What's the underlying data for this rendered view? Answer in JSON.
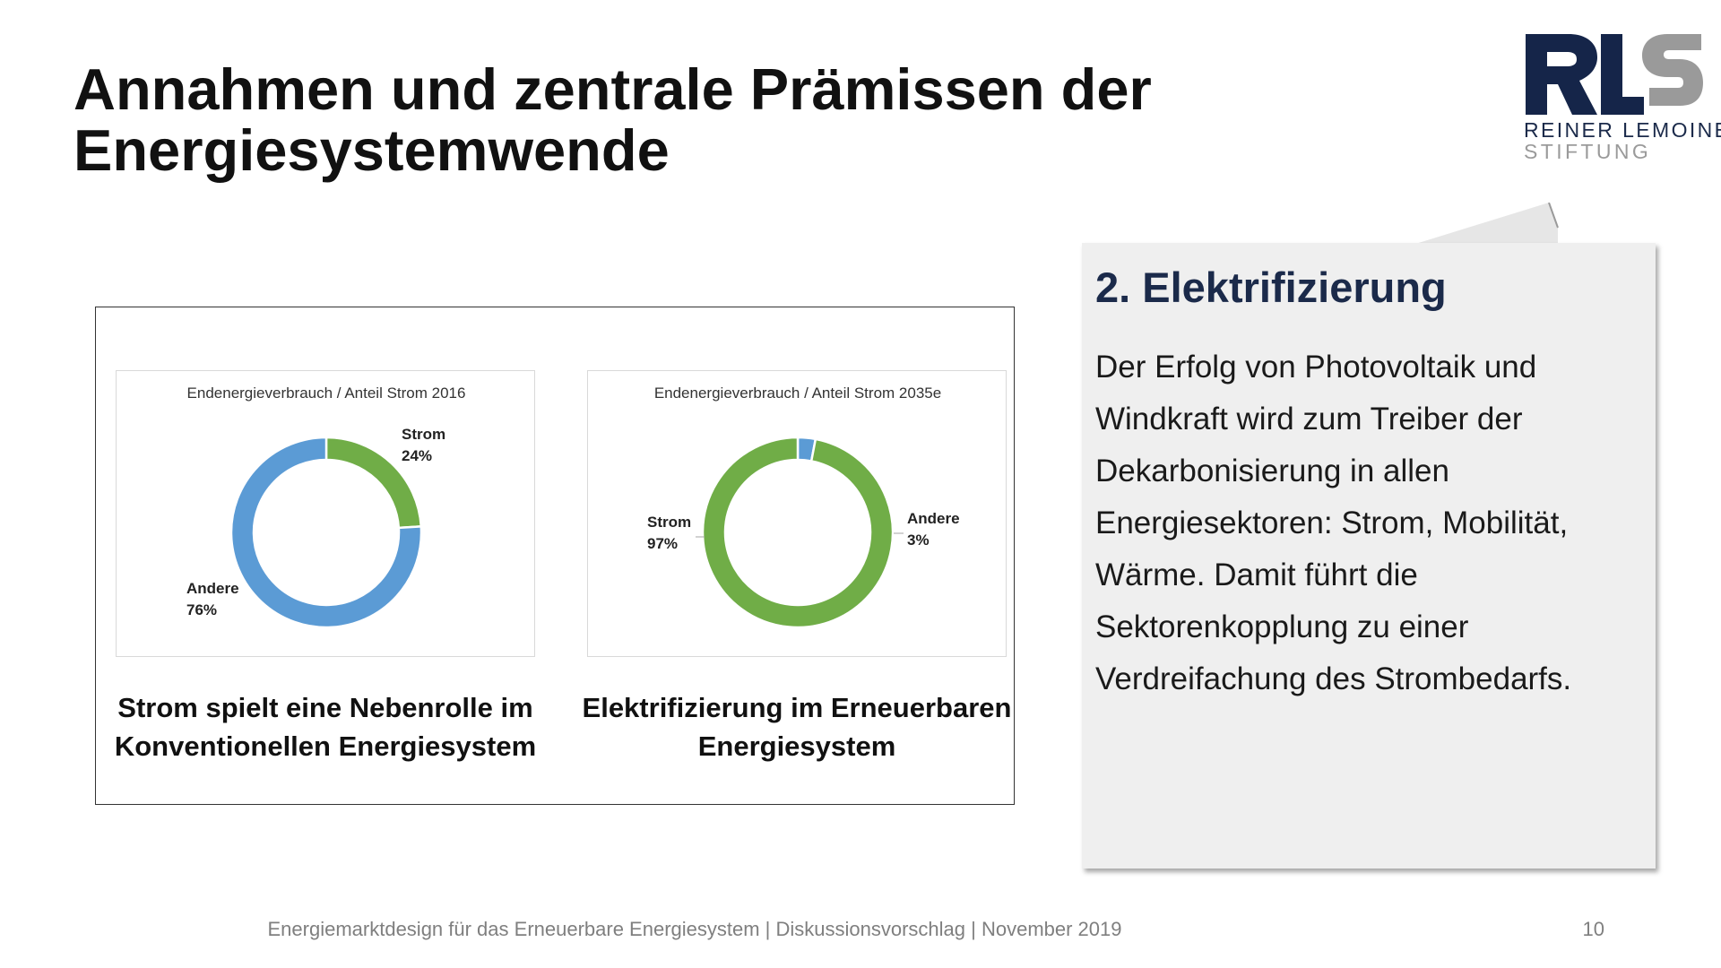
{
  "slide": {
    "title": "Annahmen und zentrale Prämissen der Energiesystemwende"
  },
  "logo": {
    "line1": "REINER LEMOINE",
    "line2": "STIFTUNG",
    "primary_color": "#152549",
    "secondary_color": "#9a9a9a"
  },
  "captions": {
    "left": "Strom spielt eine Nebenrolle im Konventionellen Energiesystem",
    "right": "Elektrifizierung im Erneuerbaren Energiesystem"
  },
  "chart_data": [
    {
      "type": "pie",
      "donut": true,
      "title": "Endenergieverbrauch  / Anteil Strom 2016",
      "labels": [
        "Strom",
        "Andere"
      ],
      "values": [
        24,
        76
      ],
      "value_labels": [
        "24%",
        "76%"
      ],
      "colors": [
        "#70ad47",
        "#5b9bd5"
      ]
    },
    {
      "type": "pie",
      "donut": true,
      "title": "Endenergieverbrauch  / Anteil Strom 2035e",
      "labels": [
        "Andere",
        "Strom"
      ],
      "values": [
        3,
        97
      ],
      "value_labels": [
        "3%",
        "97%"
      ],
      "colors": [
        "#5b9bd5",
        "#70ad47"
      ]
    }
  ],
  "note": {
    "title": "2. Elektrifizierung",
    "body": "Der Erfolg von Photovoltaik und Windkraft wird zum Treiber der Dekarbonisierung in allen Energiesektoren: Strom, Mobilität, Wärme. Damit führt die Sektorenkopplung zu einer Verdreifachung des Strombedarfs."
  },
  "footer": {
    "text": "Energiemarktdesign für das Erneuerbare Energiesystem | Diskussionsvorschlag | November 2019",
    "page": "10"
  }
}
